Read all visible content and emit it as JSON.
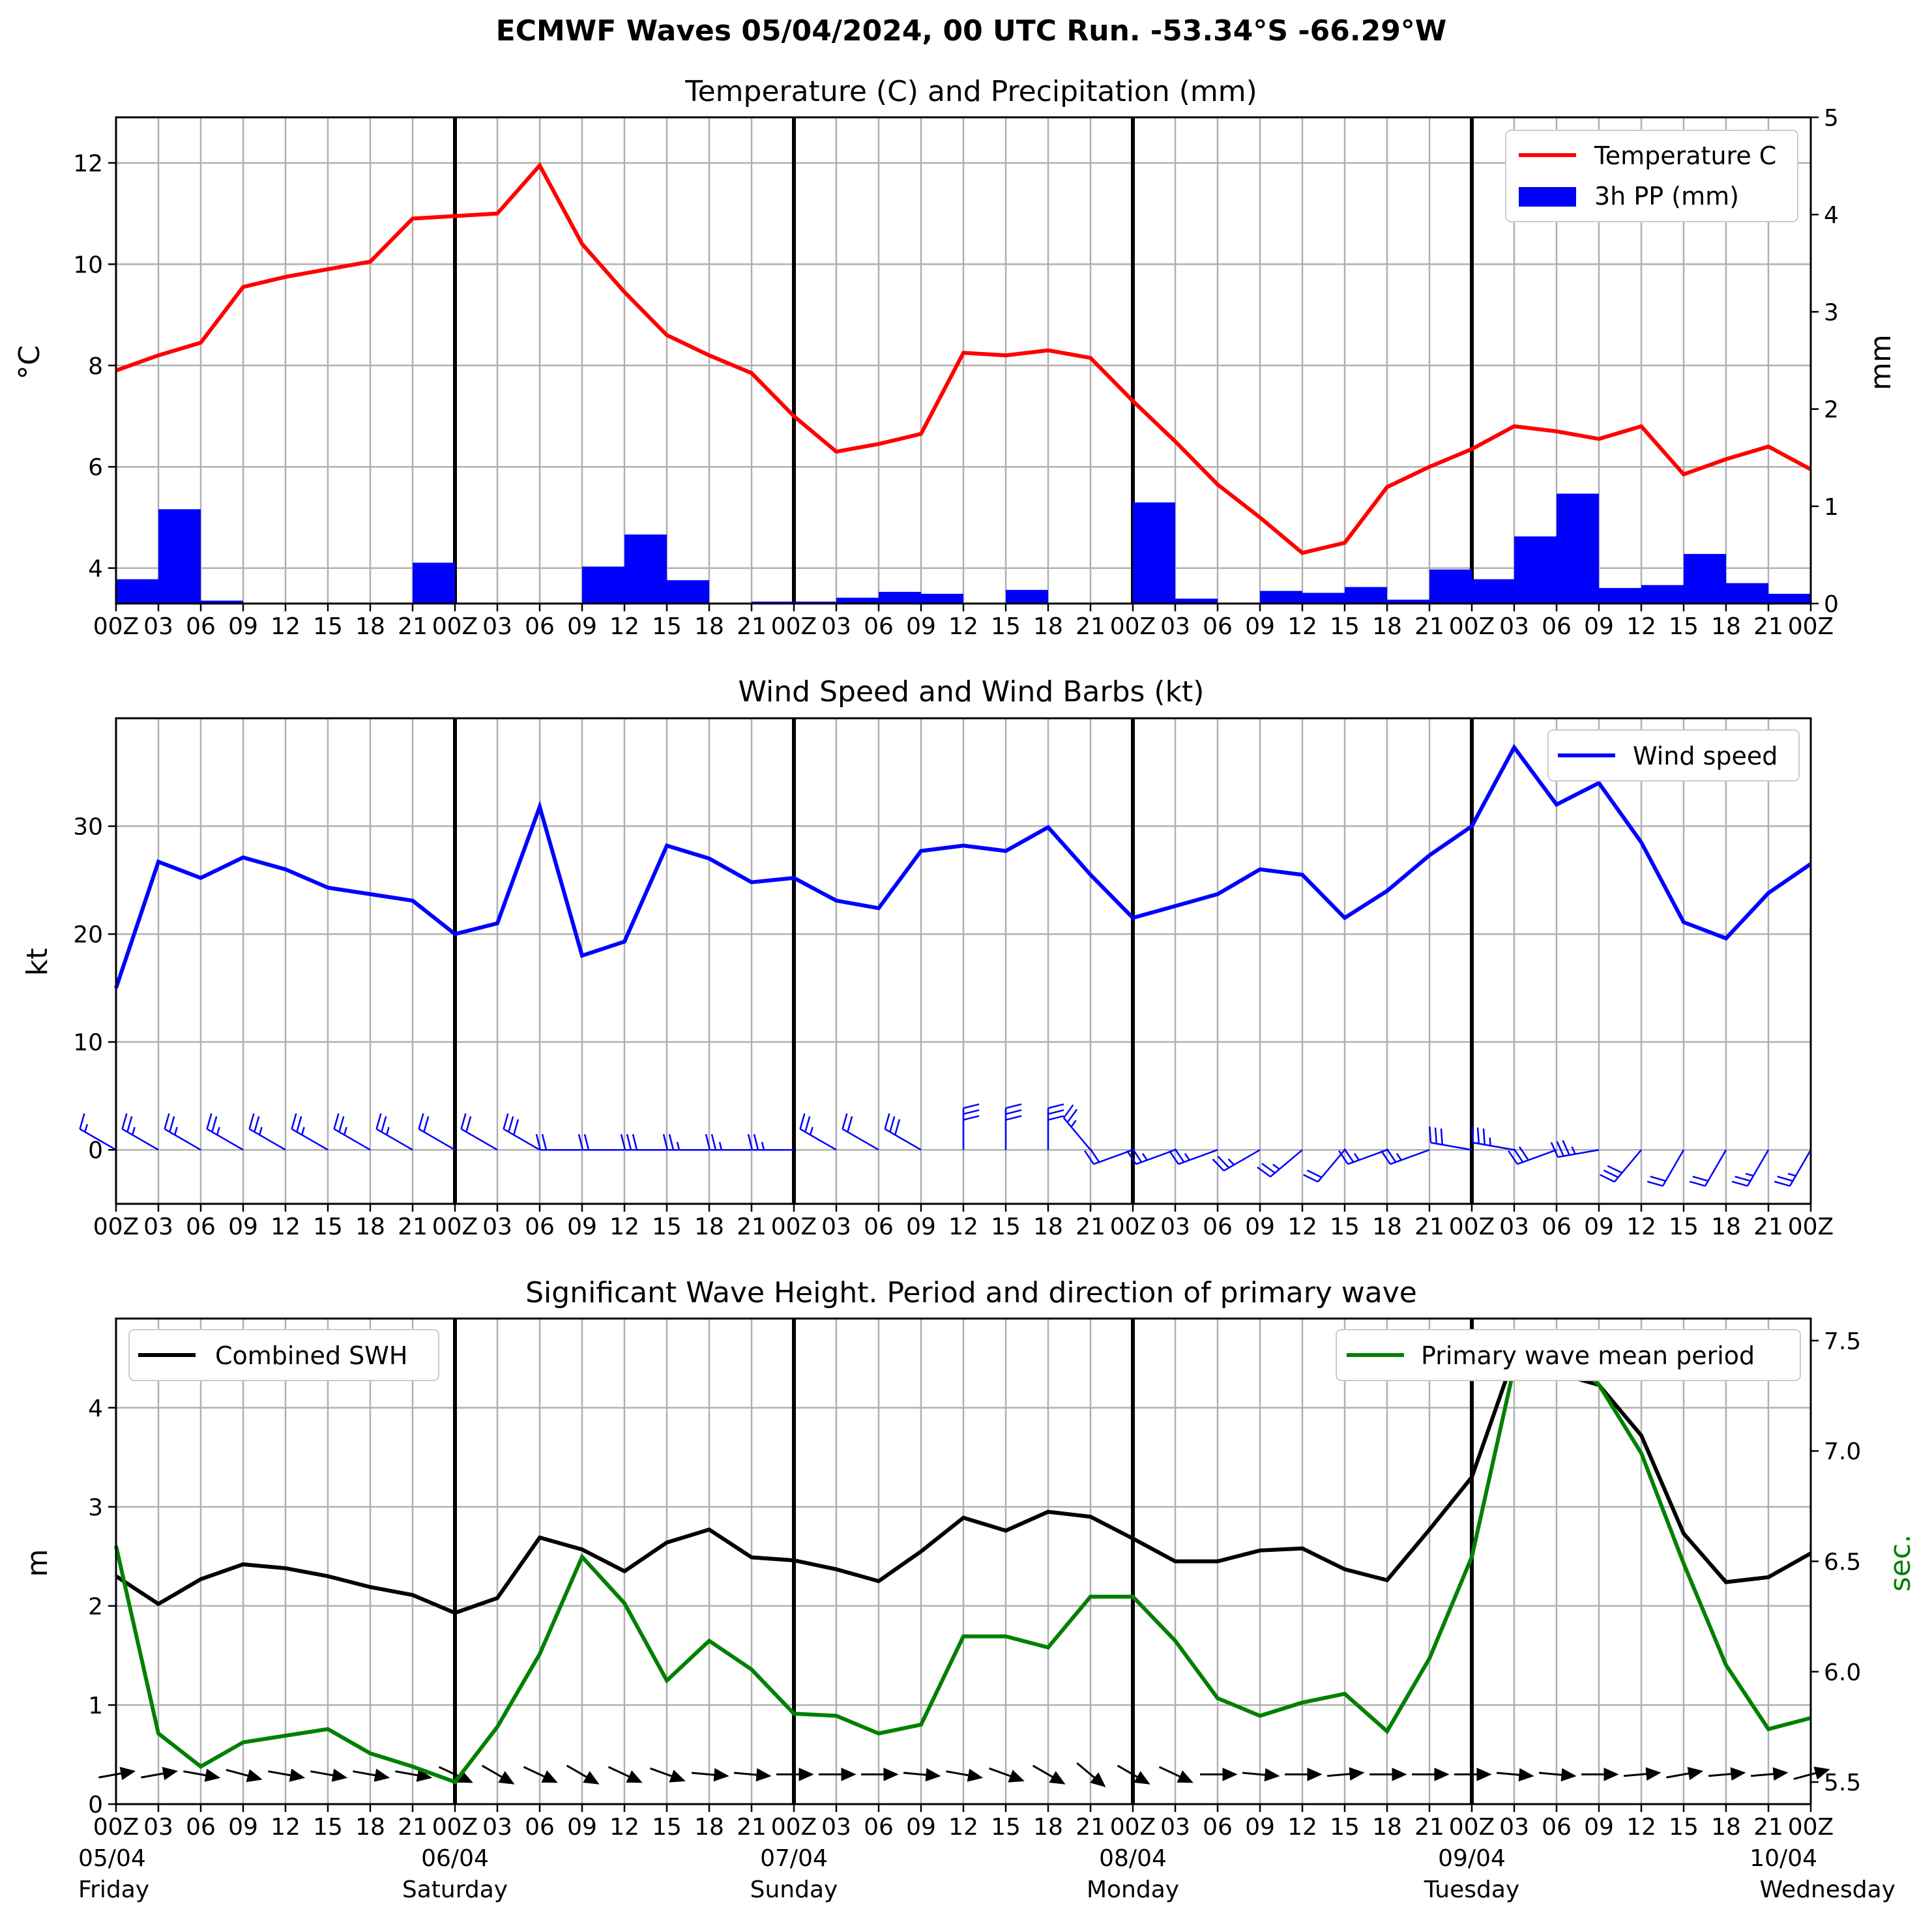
{
  "title": "ECMWF Waves 05/04/2024, 00 UTC Run. -53.34°S -66.29°W",
  "colors": {
    "temperature": "#ff0000",
    "precip": "#0000ff",
    "wind": "#0000ff",
    "swh": "#000000",
    "period": "#008000",
    "grid": "#b0b0b0"
  },
  "time_labels": [
    "00Z",
    "03",
    "06",
    "09",
    "12",
    "15",
    "18",
    "21",
    "00Z",
    "03",
    "06",
    "09",
    "12",
    "15",
    "18",
    "21",
    "00Z",
    "03",
    "06",
    "09",
    "12",
    "15",
    "18",
    "21",
    "00Z",
    "03",
    "06",
    "09",
    "12",
    "15",
    "18",
    "21",
    "00Z",
    "03",
    "06",
    "09",
    "12",
    "15",
    "18",
    "21",
    "00Z"
  ],
  "day_labels": [
    {
      "date": "05/04",
      "day": "Friday"
    },
    {
      "date": "06/04",
      "day": "Saturday"
    },
    {
      "date": "07/04",
      "day": "Sunday"
    },
    {
      "date": "08/04",
      "day": "Monday"
    },
    {
      "date": "09/04",
      "day": "Tuesday"
    },
    {
      "date": "10/04",
      "day": "Wednesday"
    }
  ],
  "chart_data": [
    {
      "type": "line",
      "title": "Temperature (C) and Precipitation (mm)",
      "ylabel": "°C",
      "ylabel_right": "mm",
      "ylim": [
        3.3,
        12.9
      ],
      "ylim_right": [
        0,
        5
      ],
      "yticks": [
        4,
        6,
        8,
        10,
        12
      ],
      "yticks_right": [
        0,
        1,
        2,
        3,
        4,
        5
      ],
      "grid": true,
      "legend": "top-right",
      "x_hours": [
        0,
        3,
        6,
        9,
        12,
        15,
        18,
        21,
        24,
        27,
        30,
        33,
        36,
        39,
        42,
        45,
        48,
        51,
        54,
        57,
        60,
        63,
        66,
        69,
        72,
        75,
        78,
        81,
        84,
        87,
        90,
        93,
        96,
        99,
        102,
        105,
        108,
        111,
        114,
        117,
        120
      ],
      "series": [
        {
          "name": "Temperature C",
          "kind": "line",
          "values": [
            7.9,
            8.2,
            8.45,
            9.55,
            9.75,
            9.9,
            10.05,
            10.9,
            10.95,
            11.0,
            11.95,
            10.4,
            9.45,
            8.6,
            8.2,
            7.85,
            7.0,
            6.3,
            6.45,
            6.65,
            8.25,
            8.2,
            8.3,
            8.15,
            7.3,
            6.5,
            5.65,
            5.0,
            4.3,
            4.5,
            5.6,
            6.0,
            6.35,
            6.8,
            6.7,
            6.55,
            6.8,
            5.85,
            6.15,
            6.4,
            5.95
          ]
        },
        {
          "name": "3h PP (mm)",
          "kind": "bar",
          "axis": "right",
          "values": [
            0.25,
            0.97,
            0.03,
            0,
            0,
            0,
            0,
            0.42,
            0,
            0,
            0,
            0.38,
            0.71,
            0.24,
            0,
            0.02,
            0.02,
            0.06,
            0.12,
            0.1,
            0,
            0.14,
            0,
            0,
            1.04,
            0.05,
            0,
            0.13,
            0.11,
            0.17,
            0.04,
            0.35,
            0.25,
            0.69,
            1.13,
            0.16,
            0.19,
            0.51,
            0.21,
            0.1,
            0.02
          ]
        }
      ]
    },
    {
      "type": "line",
      "title": "Wind Speed and Wind Barbs (kt)",
      "ylabel": "kt",
      "ylim": [
        -5,
        40
      ],
      "yticks": [
        0,
        10,
        20,
        30
      ],
      "grid": true,
      "legend": "top-right",
      "x_hours": [
        0,
        3,
        6,
        9,
        12,
        15,
        18,
        21,
        24,
        27,
        30,
        33,
        36,
        39,
        42,
        45,
        48,
        51,
        54,
        57,
        60,
        63,
        66,
        69,
        72,
        75,
        78,
        81,
        84,
        87,
        90,
        93,
        96,
        99,
        102,
        105,
        108,
        111,
        114,
        117,
        120
      ],
      "series": [
        {
          "name": "Wind speed",
          "values": [
            15,
            26.7,
            25.2,
            27.1,
            26,
            24.3,
            23.7,
            23.1,
            20,
            21,
            31.8,
            18,
            19.3,
            28.2,
            27,
            24.8,
            25.2,
            23.1,
            22.4,
            27.7,
            28.2,
            27.7,
            29.9,
            25.5,
            21.5,
            22.6,
            23.7,
            26,
            25.5,
            21.5,
            24,
            27.3,
            30,
            37.3,
            32,
            34,
            28.5,
            21.1,
            19.6,
            23.8,
            26.5
          ]
        }
      ],
      "barbs": {
        "speeds_kt": [
          15,
          26.7,
          25.2,
          27.1,
          26,
          24.3,
          23.7,
          23.1,
          20,
          21,
          31.8,
          18,
          19.3,
          28.2,
          27,
          24.8,
          25.2,
          23.1,
          22.4,
          27.7,
          28.2,
          27.7,
          29.9,
          25.5,
          21.5,
          22.6,
          23.7,
          26,
          25.5,
          21.5,
          24,
          27.3,
          30,
          37.3,
          32,
          34,
          28.5,
          21.1,
          19.6,
          23.8,
          26.5
        ],
        "direction_from_deg": [
          300,
          300,
          300,
          300,
          300,
          300,
          300,
          300,
          300,
          300,
          300,
          270,
          270,
          270,
          270,
          270,
          270,
          300,
          300,
          300,
          360,
          360,
          360,
          320,
          250,
          250,
          250,
          240,
          230,
          220,
          250,
          250,
          280,
          280,
          250,
          260,
          220,
          210,
          210,
          210,
          210
        ]
      }
    },
    {
      "type": "line",
      "title": "Significant Wave Height. Period and direction of primary wave",
      "ylabel": "m",
      "ylabel_right": "sec.",
      "ylim": [
        0,
        4.9
      ],
      "ylim_right": [
        5.4,
        7.6
      ],
      "yticks": [
        0,
        1,
        2,
        3,
        4
      ],
      "yticks_right": [
        5.5,
        6.0,
        6.5,
        7.0,
        7.5
      ],
      "grid": true,
      "x_hours": [
        0,
        3,
        6,
        9,
        12,
        15,
        18,
        21,
        24,
        27,
        30,
        33,
        36,
        39,
        42,
        45,
        48,
        51,
        54,
        57,
        60,
        63,
        66,
        69,
        72,
        75,
        78,
        81,
        84,
        87,
        90,
        93,
        96,
        99,
        102,
        105,
        108,
        111,
        114,
        117,
        120
      ],
      "series": [
        {
          "name": "Combined SWH",
          "legend": "top-left",
          "values": [
            2.3,
            2.02,
            2.27,
            2.42,
            2.38,
            2.3,
            2.19,
            2.11,
            1.93,
            2.08,
            2.69,
            2.57,
            2.35,
            2.64,
            2.77,
            2.49,
            2.46,
            2.37,
            2.25,
            2.55,
            2.89,
            2.76,
            2.95,
            2.9,
            2.68,
            2.45,
            2.45,
            2.56,
            2.58,
            2.37,
            2.26,
            2.77,
            3.3,
            4.52,
            4.35,
            4.23,
            3.72,
            2.73,
            2.24,
            2.29,
            2.53
          ]
        },
        {
          "name": "Primary wave mean period",
          "axis": "right",
          "legend": "top-right",
          "values": [
            6.57,
            5.72,
            5.57,
            5.68,
            5.71,
            5.74,
            5.63,
            5.57,
            5.5,
            5.75,
            6.08,
            6.52,
            6.31,
            5.96,
            6.14,
            6.01,
            5.81,
            5.8,
            5.72,
            5.76,
            6.16,
            6.16,
            6.11,
            6.34,
            6.34,
            6.14,
            5.88,
            5.8,
            5.86,
            5.9,
            5.73,
            6.06,
            6.52,
            7.38,
            7.47,
            7.3,
            6.99,
            6.49,
            6.03,
            5.74,
            5.79
          ]
        }
      ],
      "wave_direction_to_deg": [
        80,
        80,
        100,
        105,
        100,
        100,
        100,
        100,
        115,
        120,
        115,
        120,
        115,
        110,
        95,
        95,
        90,
        90,
        90,
        95,
        100,
        110,
        120,
        130,
        120,
        115,
        90,
        95,
        90,
        85,
        90,
        90,
        90,
        95,
        95,
        90,
        85,
        80,
        85,
        85,
        75
      ]
    }
  ]
}
